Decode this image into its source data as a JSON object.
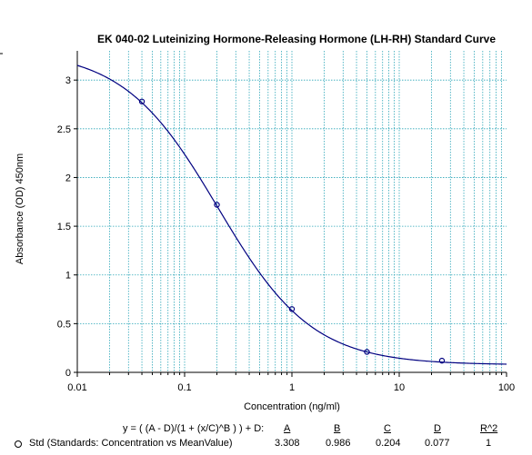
{
  "chart_data": {
    "type": "scatter",
    "title": "EK 040-02 Luteinizing Hormone-Releasing Hormone (LH-RH) Standard Curve",
    "xlabel": "Concentration (ng/ml)",
    "ylabel": "Absorbance (OD) 450nm",
    "x_scale": "log",
    "xlim": [
      0.01,
      100
    ],
    "ylim": [
      0,
      3.3
    ],
    "x_ticks": [
      "0.01",
      "0.1",
      "1",
      "10",
      "100"
    ],
    "y_ticks": [
      "0",
      "0.5",
      "1",
      "1.5",
      "2",
      "2.5",
      "3"
    ],
    "grid": true,
    "series": [
      {
        "name": "Std (Standards: Concentration vs MeanValue)",
        "color": "#000080",
        "points": [
          {
            "x": 0.04,
            "y": 2.78
          },
          {
            "x": 0.2,
            "y": 1.72
          },
          {
            "x": 1,
            "y": 0.65
          },
          {
            "x": 5,
            "y": 0.21
          },
          {
            "x": 25,
            "y": 0.12
          }
        ],
        "fit": {
          "A": 3.308,
          "B": 0.986,
          "C": 0.204,
          "D": 0.077
        }
      }
    ]
  },
  "fit_table": {
    "equation": "y = ( (A - D)/(1 + (x/C)^B ) ) + D:",
    "headers": [
      "A",
      "B",
      "C",
      "D",
      "R^2"
    ],
    "row_label": "Std (Standards: Concentration vs MeanValue)",
    "values": [
      "3.308",
      "0.986",
      "0.204",
      "0.077",
      "1"
    ]
  },
  "colors": {
    "grid": "#2ca6b8",
    "curve": "#000080",
    "axis": "#000000"
  }
}
